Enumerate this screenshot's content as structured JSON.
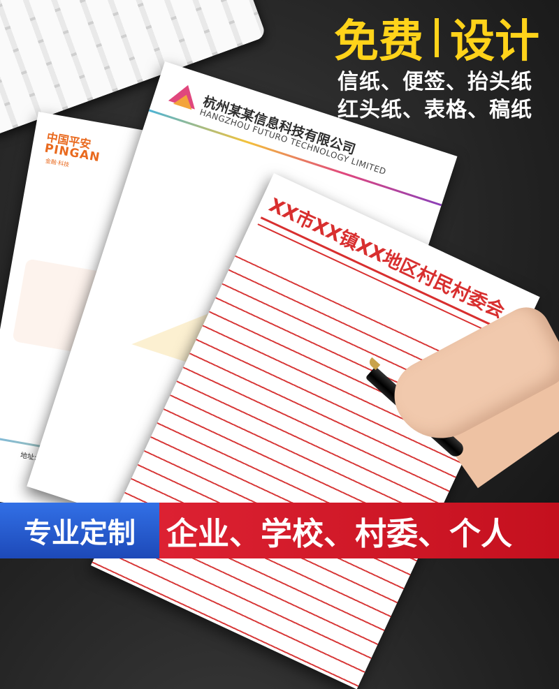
{
  "headline": {
    "left": "免费",
    "right": "设计"
  },
  "subtitle_lines": [
    "信纸、便签、抬头纸",
    "红头纸、表格、稿纸"
  ],
  "papers": [
    {
      "logo": "中国平安",
      "logo_en": "PINGAN",
      "slogan": "金融·科技",
      "address": "地址:浙江省杭州市滨江"
    },
    {
      "company": "杭州某某信息科技有限公司",
      "company_en": "HANGZHOU FUTURO TECHNOLOGY LIMITED"
    },
    {
      "title": "XX市XX镇XX地区村民村委会"
    }
  ],
  "banner": {
    "badge": "专业定制",
    "audience": "企业、学校、村委、个人"
  }
}
